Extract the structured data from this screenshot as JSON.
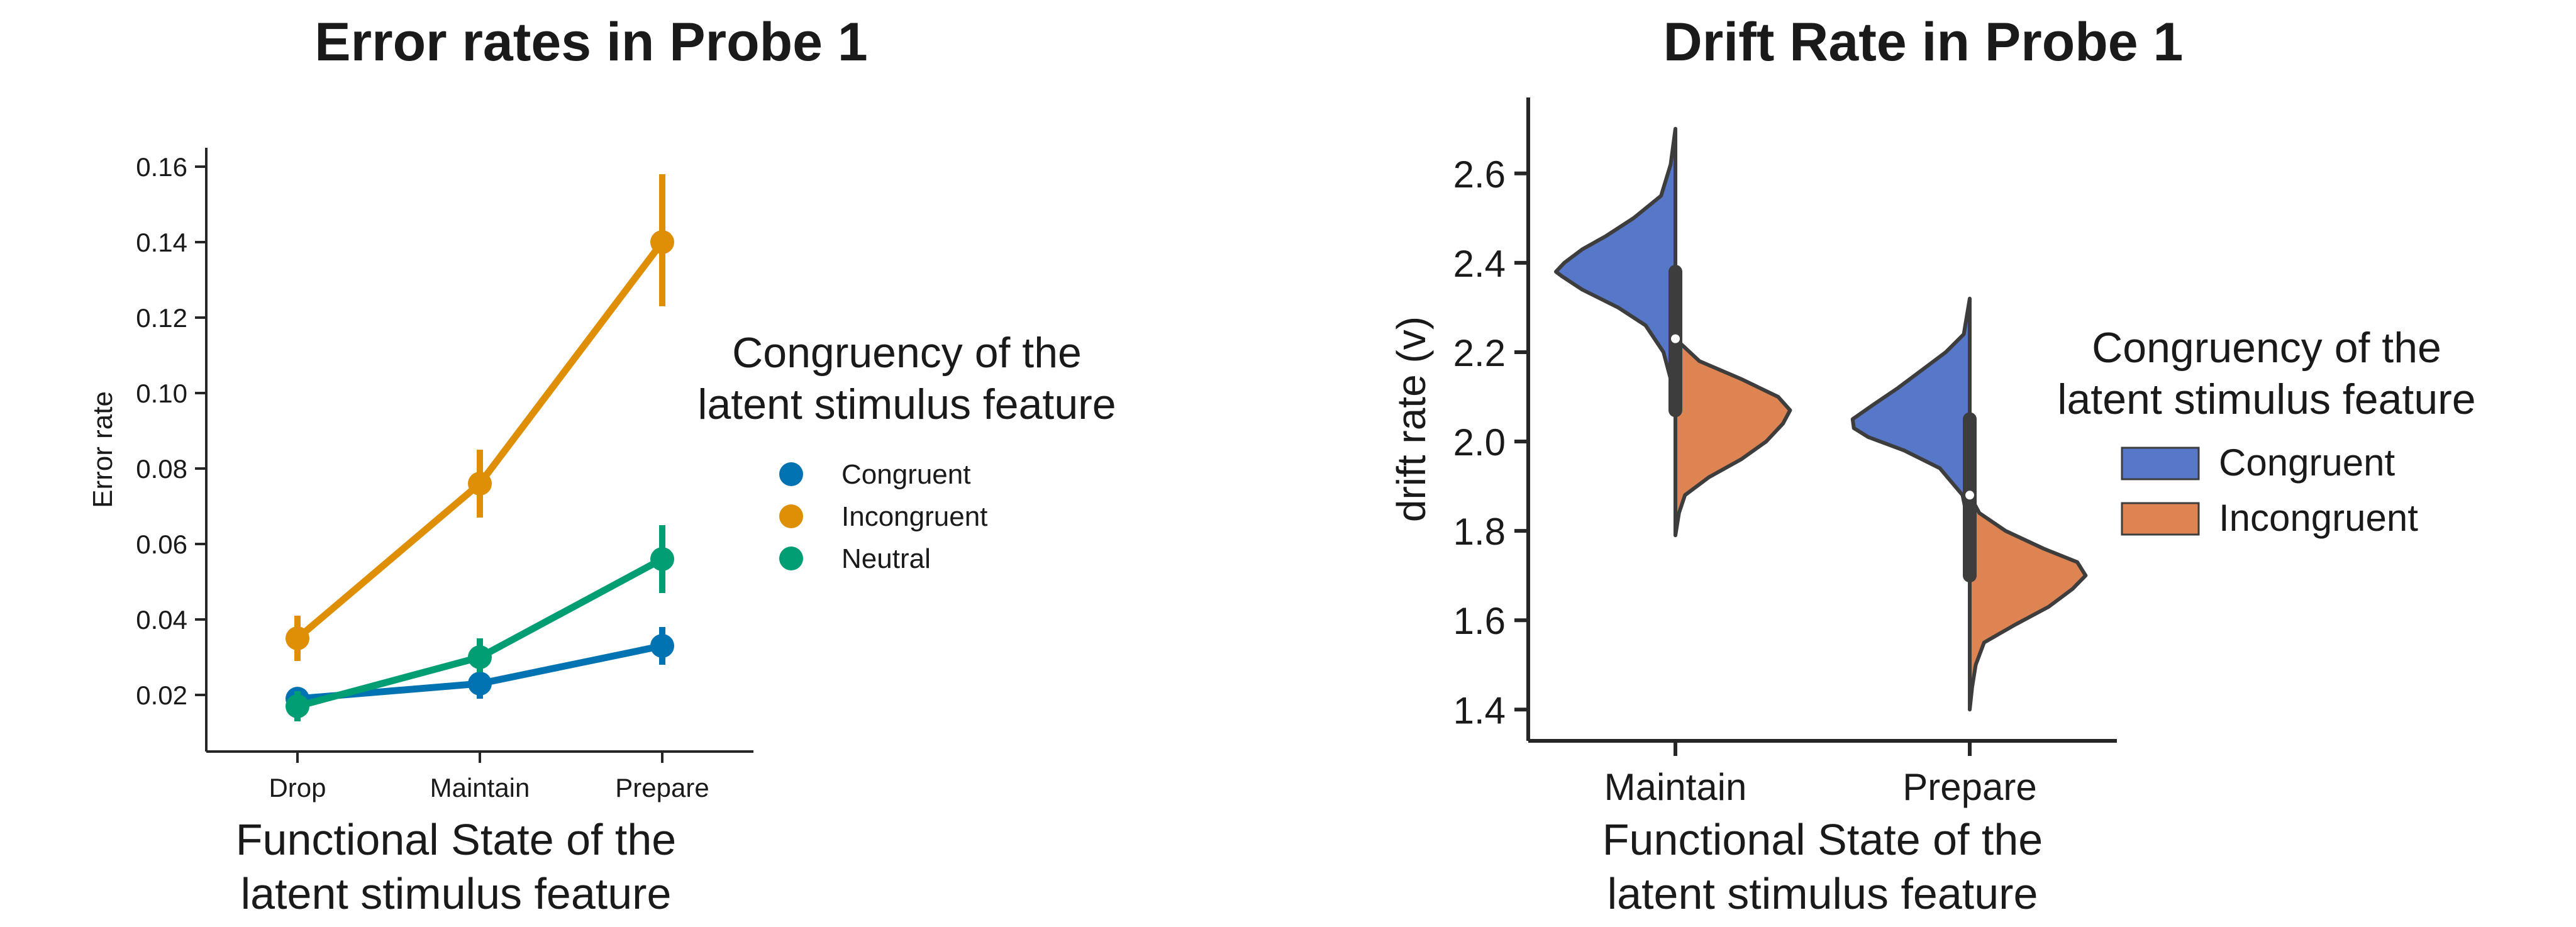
{
  "chart_data": [
    {
      "type": "line",
      "title": "Error rates in Probe 1",
      "xlabel_lines": [
        "Functional State of the",
        "latent stimulus feature"
      ],
      "ylabel": "Error rate",
      "categories": [
        "Drop",
        "Maintain",
        "Prepare"
      ],
      "ylim": [
        0.005,
        0.165
      ],
      "yticks": [
        0.02,
        0.04,
        0.06,
        0.08,
        0.1,
        0.12,
        0.14,
        0.16
      ],
      "ytick_labels": [
        "0.02",
        "0.04",
        "0.06",
        "0.08",
        "0.10",
        "0.12",
        "0.14",
        "0.16"
      ],
      "legend_title_lines": [
        "Congruency of the",
        "latent stimulus feature"
      ],
      "legend_position": "right",
      "grid": false,
      "series": [
        {
          "name": "Congruent",
          "color": "#0173b2",
          "values": [
            0.019,
            0.023,
            0.033
          ],
          "ci": [
            [
              0.016,
              0.021
            ],
            [
              0.019,
              0.027
            ],
            [
              0.028,
              0.038
            ]
          ]
        },
        {
          "name": "Incongruent",
          "color": "#de8f05",
          "values": [
            0.035,
            0.076,
            0.14
          ],
          "ci": [
            [
              0.029,
              0.041
            ],
            [
              0.067,
              0.085
            ],
            [
              0.123,
              0.158
            ]
          ]
        },
        {
          "name": "Neutral",
          "color": "#029e73",
          "values": [
            0.017,
            0.03,
            0.056
          ],
          "ci": [
            [
              0.013,
              0.021
            ],
            [
              0.026,
              0.035
            ],
            [
              0.047,
              0.065
            ]
          ]
        }
      ]
    },
    {
      "type": "violin",
      "title": "Drift Rate in Probe 1",
      "xlabel_lines": [
        "Functional State of the",
        "latent stimulus feature"
      ],
      "ylabel": "drift rate (v)",
      "categories": [
        "Maintain",
        "Prepare"
      ],
      "ylim": [
        1.33,
        2.77
      ],
      "yticks": [
        1.4,
        1.6,
        1.8,
        2.0,
        2.2,
        2.4,
        2.6
      ],
      "ytick_labels": [
        "1.4",
        "1.6",
        "1.8",
        "2.0",
        "2.2",
        "2.4",
        "2.6"
      ],
      "legend_title_lines": [
        "Congruency of the",
        "latent stimulus feature"
      ],
      "legend_position": "right",
      "grid": false,
      "series": [
        {
          "name": "Congruent",
          "color": "#5778c8"
        },
        {
          "name": "Incongruent",
          "color": "#dd8452"
        }
      ],
      "violins": [
        {
          "category": "Maintain",
          "median": 2.23,
          "iqr": [
            2.07,
            2.38
          ],
          "congruent": [
            [
              2.1,
              0.0
            ],
            [
              2.2,
              0.1
            ],
            [
              2.26,
              0.25
            ],
            [
              2.3,
              0.48
            ],
            [
              2.34,
              0.78
            ],
            [
              2.37,
              0.95
            ],
            [
              2.38,
              1.0
            ],
            [
              2.4,
              0.93
            ],
            [
              2.43,
              0.78
            ],
            [
              2.46,
              0.58
            ],
            [
              2.5,
              0.35
            ],
            [
              2.55,
              0.12
            ],
            [
              2.62,
              0.04
            ],
            [
              2.7,
              0.0
            ]
          ],
          "incongruent": [
            [
              1.79,
              0.0
            ],
            [
              1.84,
              0.03
            ],
            [
              1.88,
              0.08
            ],
            [
              1.92,
              0.28
            ],
            [
              1.96,
              0.55
            ],
            [
              2.0,
              0.76
            ],
            [
              2.04,
              0.9
            ],
            [
              2.07,
              0.96
            ],
            [
              2.1,
              0.86
            ],
            [
              2.14,
              0.55
            ],
            [
              2.18,
              0.2
            ],
            [
              2.22,
              0.04
            ],
            [
              2.26,
              0.0
            ]
          ]
        },
        {
          "category": "Prepare",
          "median": 1.88,
          "iqr": [
            1.7,
            2.05
          ],
          "congruent": [
            [
              1.8,
              0.0
            ],
            [
              1.88,
              0.06
            ],
            [
              1.94,
              0.25
            ],
            [
              1.98,
              0.55
            ],
            [
              2.01,
              0.85
            ],
            [
              2.03,
              0.97
            ],
            [
              2.05,
              0.98
            ],
            [
              2.08,
              0.82
            ],
            [
              2.12,
              0.6
            ],
            [
              2.16,
              0.4
            ],
            [
              2.2,
              0.2
            ],
            [
              2.24,
              0.05
            ],
            [
              2.32,
              0.0
            ]
          ],
          "incongruent": [
            [
              1.4,
              0.0
            ],
            [
              1.45,
              0.02
            ],
            [
              1.5,
              0.05
            ],
            [
              1.55,
              0.12
            ],
            [
              1.59,
              0.38
            ],
            [
              1.63,
              0.66
            ],
            [
              1.67,
              0.86
            ],
            [
              1.7,
              0.97
            ],
            [
              1.73,
              0.9
            ],
            [
              1.76,
              0.62
            ],
            [
              1.8,
              0.3
            ],
            [
              1.84,
              0.08
            ],
            [
              1.88,
              0.0
            ]
          ]
        }
      ]
    }
  ]
}
